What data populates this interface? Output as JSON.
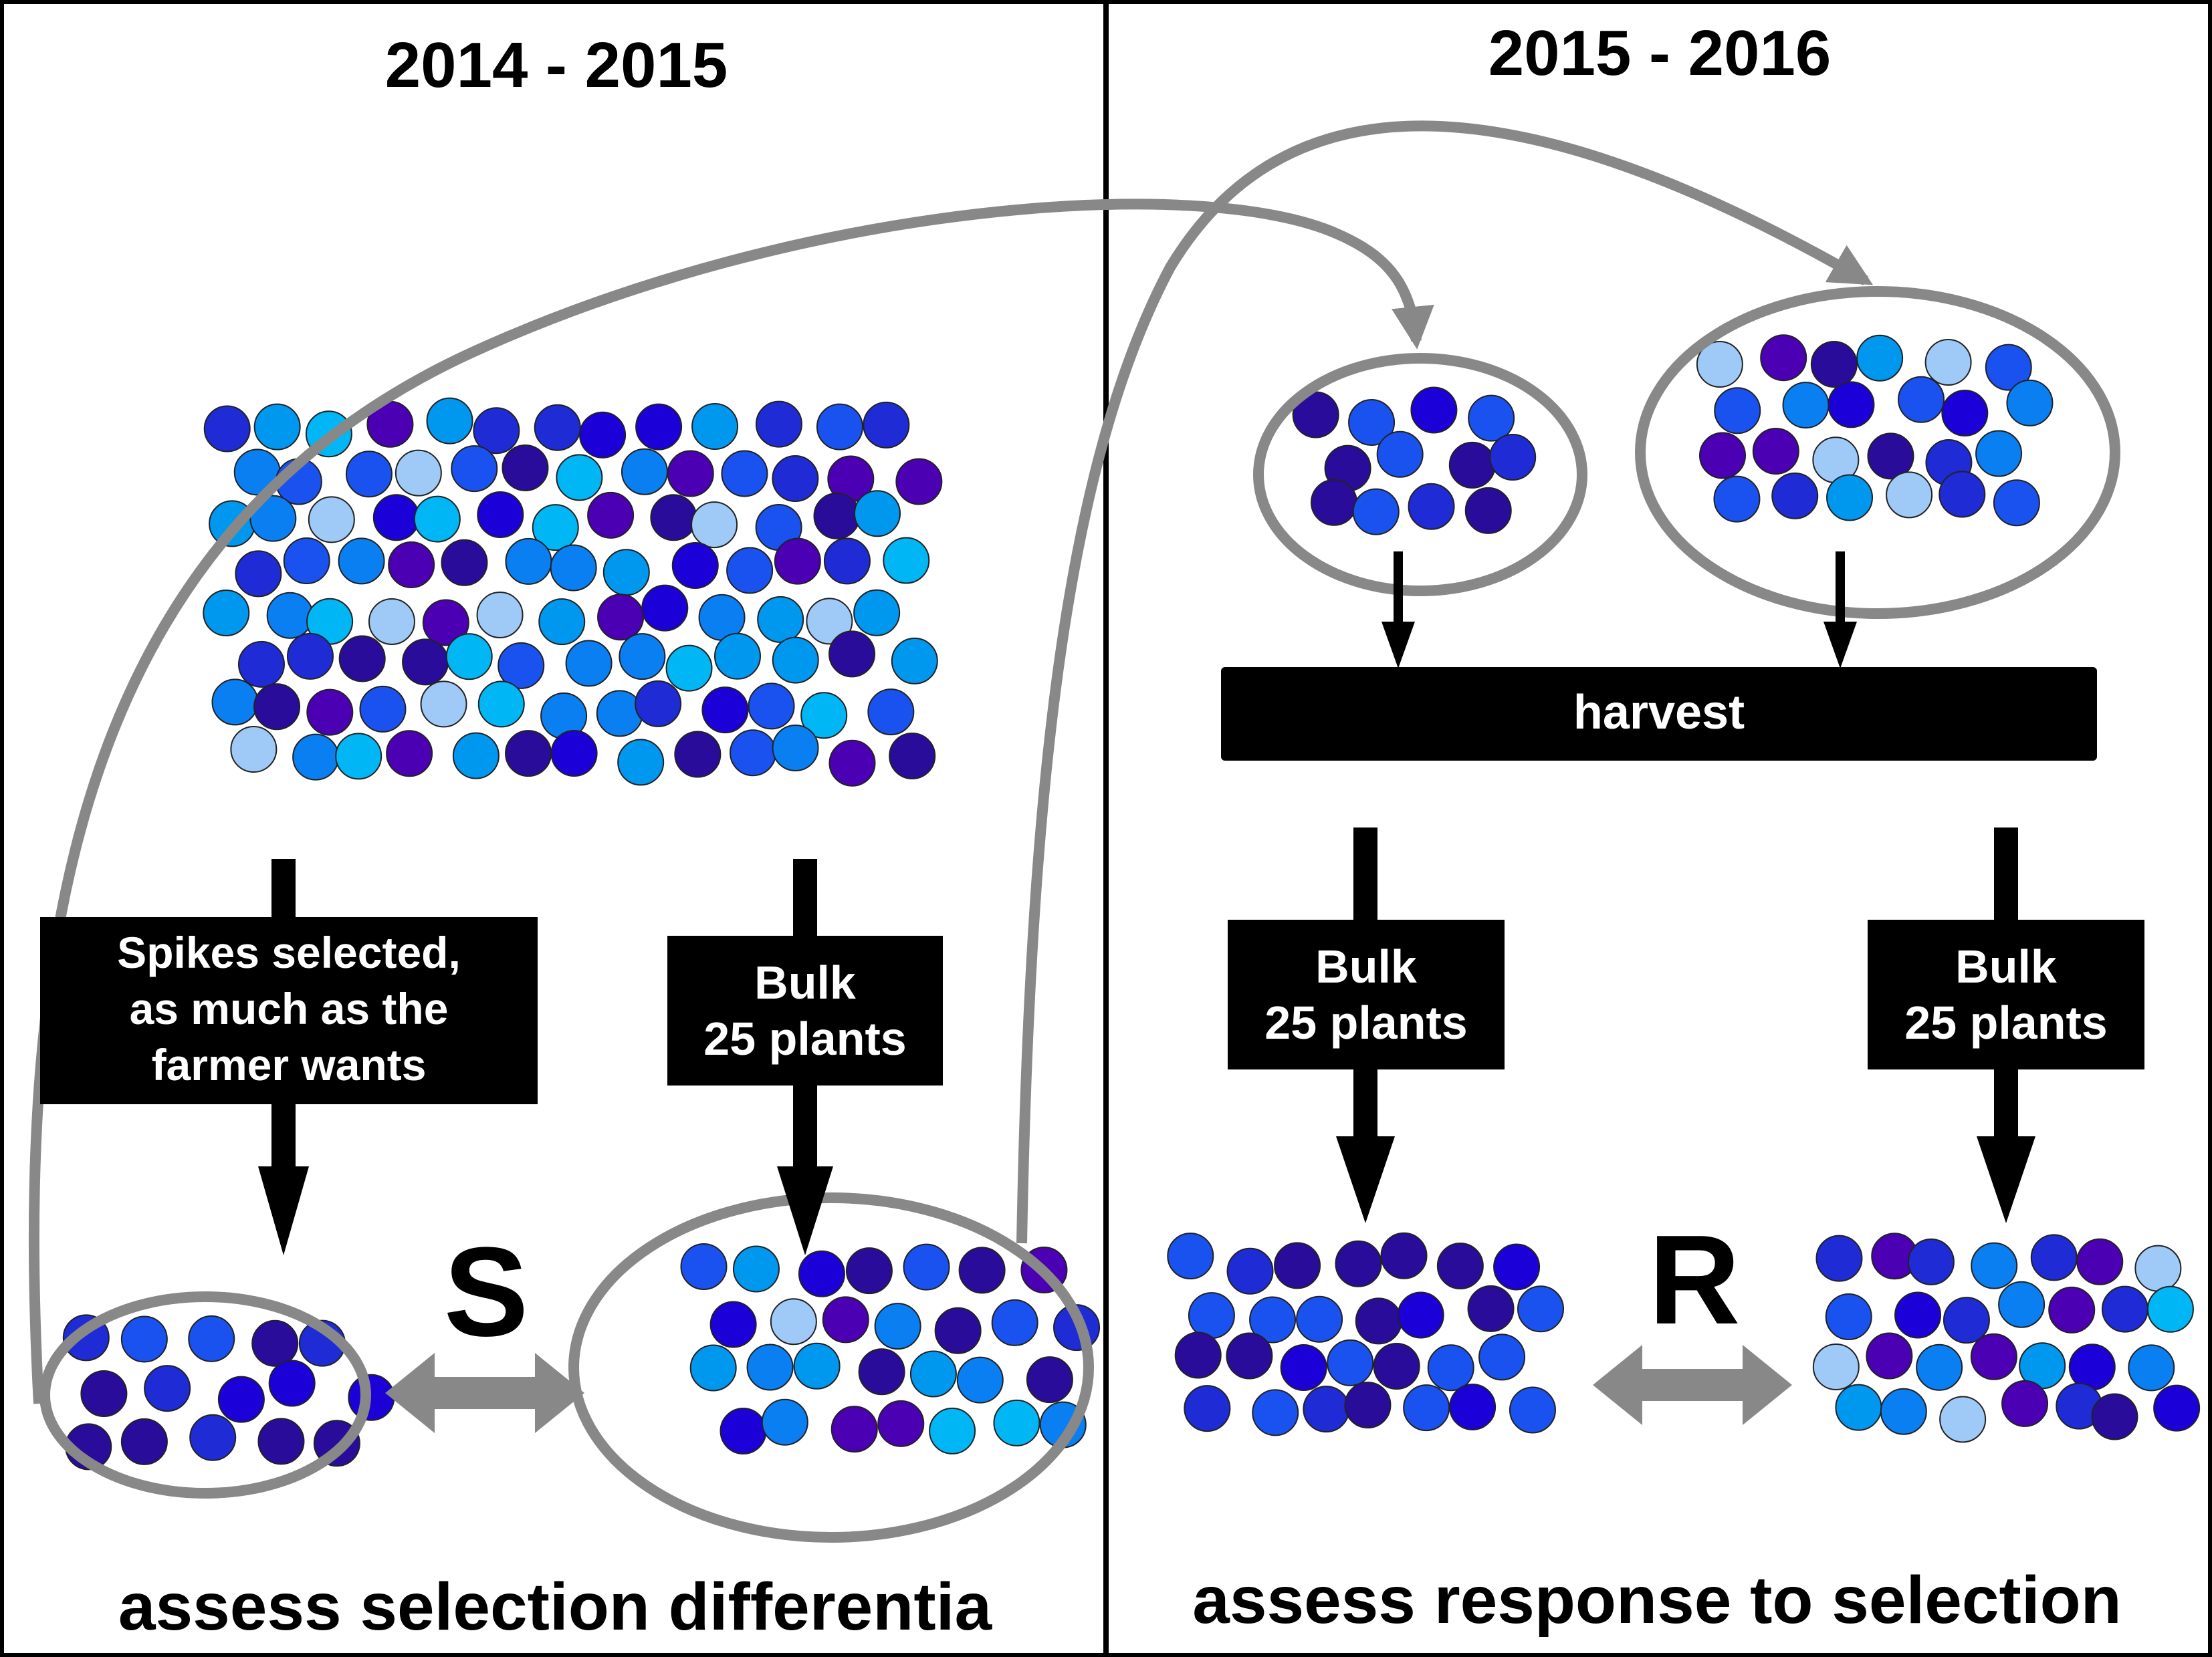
{
  "panels": {
    "left": {
      "title": "2014 - 2015",
      "caption": "assess selection differentia",
      "box_selected": [
        "Spikes selected,",
        "as much as the",
        "farmer wants"
      ],
      "box_bulk": [
        "Bulk",
        "25 plants"
      ],
      "comparison_label": "S"
    },
    "right": {
      "title": "2015 - 2016",
      "caption": "assess response to selection",
      "harvest_label": "harvest",
      "box_bulk_left": [
        "Bulk",
        "25 plants"
      ],
      "box_bulk_right": [
        "Bulk",
        "25 plants"
      ],
      "comparison_label": "R"
    }
  },
  "colors": {
    "palette": [
      "#2a0c9a",
      "#1f2bd4",
      "#1a52f0",
      "#0a7ff2",
      "#0097ef",
      "#00b6f4",
      "#9fcaf8",
      "#4c00b4",
      "#1c00d8"
    ],
    "outline": "#888888",
    "box": "#000000",
    "box_text": "#ffffff"
  }
}
